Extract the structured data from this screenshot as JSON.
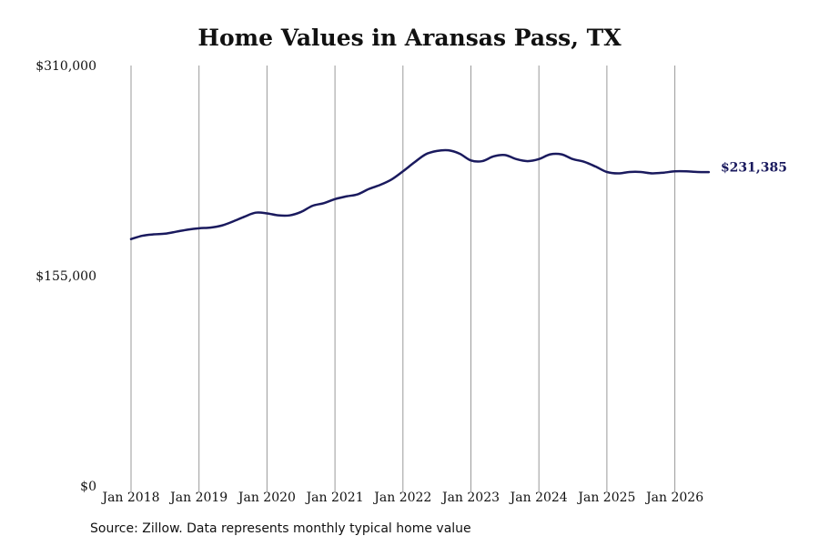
{
  "chart_data": {
    "type": "line",
    "title": "Home Values in Aransas Pass, TX",
    "xlabel": "",
    "ylabel": "",
    "ylim": [
      0,
      310000
    ],
    "y_ticks": [
      {
        "value": 0,
        "label": "$0"
      },
      {
        "value": 155000,
        "label": "$155,000"
      },
      {
        "value": 310000,
        "label": "$310,000"
      }
    ],
    "x_ticks": [
      {
        "value": 2018.0,
        "label": "Jan 2018"
      },
      {
        "value": 2019.0,
        "label": "Jan 2019"
      },
      {
        "value": 2020.0,
        "label": "Jan 2020"
      },
      {
        "value": 2021.0,
        "label": "Jan 2021"
      },
      {
        "value": 2022.0,
        "label": "Jan 2022"
      },
      {
        "value": 2023.0,
        "label": "Jan 2023"
      },
      {
        "value": 2024.0,
        "label": "Jan 2024"
      },
      {
        "value": 2025.0,
        "label": "Jan 2025"
      },
      {
        "value": 2026.0,
        "label": "Jan 2026"
      }
    ],
    "grid": "vertical",
    "line_color": "#1a1a5e",
    "end_label": "$231,385",
    "series": [
      {
        "x": [
          "2018-01",
          "2018-03",
          "2018-05",
          "2018-07",
          "2018-09",
          "2018-11",
          "2019-01",
          "2019-03",
          "2019-05",
          "2019-07",
          "2019-09",
          "2019-11",
          "2020-01",
          "2020-03",
          "2020-05",
          "2020-07",
          "2020-09",
          "2020-11",
          "2021-01",
          "2021-03",
          "2021-05",
          "2021-07",
          "2021-09",
          "2021-11",
          "2022-01",
          "2022-03",
          "2022-05",
          "2022-07",
          "2022-09",
          "2022-11",
          "2023-01",
          "2023-03",
          "2023-05",
          "2023-07",
          "2023-09",
          "2023-11",
          "2024-01",
          "2024-03",
          "2024-05",
          "2024-07",
          "2024-09",
          "2024-11",
          "2025-01",
          "2025-03",
          "2025-05",
          "2025-07",
          "2025-09",
          "2025-11",
          "2026-01",
          "2026-03",
          "2026-05",
          "2026-07"
        ],
        "values": [
          182000,
          184500,
          185500,
          186000,
          187500,
          189000,
          190000,
          190500,
          192000,
          195000,
          198500,
          201500,
          201000,
          199500,
          199500,
          202000,
          206500,
          208500,
          211500,
          213500,
          215000,
          219000,
          222000,
          226000,
          232000,
          238500,
          244500,
          247000,
          247500,
          245000,
          240000,
          239500,
          243000,
          244000,
          241000,
          239500,
          241000,
          244500,
          244500,
          241000,
          239000,
          235500,
          231500,
          230500,
          231500,
          231500,
          230500,
          231000,
          232000,
          232000,
          231500,
          231385
        ]
      }
    ]
  },
  "source_text": "Source: Zillow. Data represents monthly typical home value"
}
